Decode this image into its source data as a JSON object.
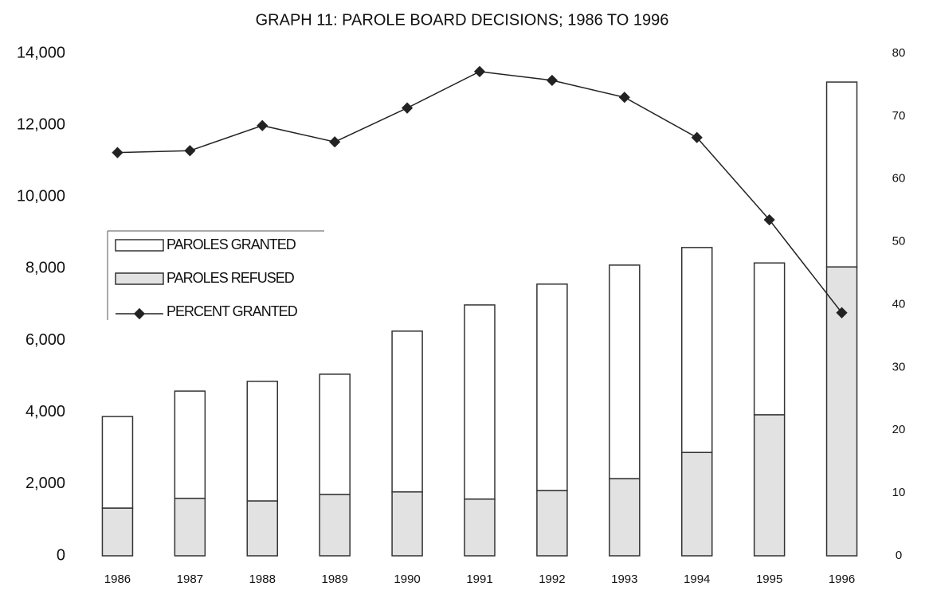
{
  "chart_data": {
    "type": "bar",
    "stacked": true,
    "title": "GRAPH 11: PAROLE BOARD DECISIONS; 1986 TO 1996",
    "categories": [
      "1986",
      "1987",
      "1988",
      "1989",
      "1990",
      "1991",
      "1992",
      "1993",
      "1994",
      "1995",
      "1996"
    ],
    "series": [
      {
        "name": "PAROLES REFUSED",
        "color": "#e2e2e2",
        "values": [
          1330,
          1600,
          1530,
          1710,
          1780,
          1580,
          1820,
          2150,
          2880,
          3930,
          8050
        ]
      },
      {
        "name": "PAROLES GRANTED",
        "color": "#ffffff",
        "values": [
          2550,
          2990,
          3330,
          3350,
          4480,
          5410,
          5750,
          5950,
          5710,
          4230,
          5150
        ]
      },
      {
        "name": "PERCENT GRANTED",
        "color": "#222222",
        "type": "line",
        "axis": "y2",
        "values": [
          64.2,
          64.5,
          68.5,
          65.9,
          71.3,
          77.1,
          75.7,
          73.0,
          66.6,
          53.5,
          38.7
        ]
      }
    ],
    "legend_order": [
      1,
      0,
      2
    ],
    "ylim": [
      0,
      14000
    ],
    "yticks": [
      0,
      {
        "value": 2000,
        "label": "2,000"
      },
      {
        "value": 4000,
        "label": "4,000"
      },
      {
        "value": 6000,
        "label": "6,000"
      },
      {
        "value": 8000,
        "label": "8,000"
      },
      {
        "value": 10000,
        "label": "10,000"
      },
      {
        "value": 12000,
        "label": "12,000"
      },
      {
        "value": 14000,
        "label": "14,000"
      }
    ],
    "y2lim": [
      0,
      80
    ],
    "y2ticks": [
      0,
      10,
      20,
      30,
      40,
      50,
      60,
      70,
      80
    ],
    "grid": false
  }
}
